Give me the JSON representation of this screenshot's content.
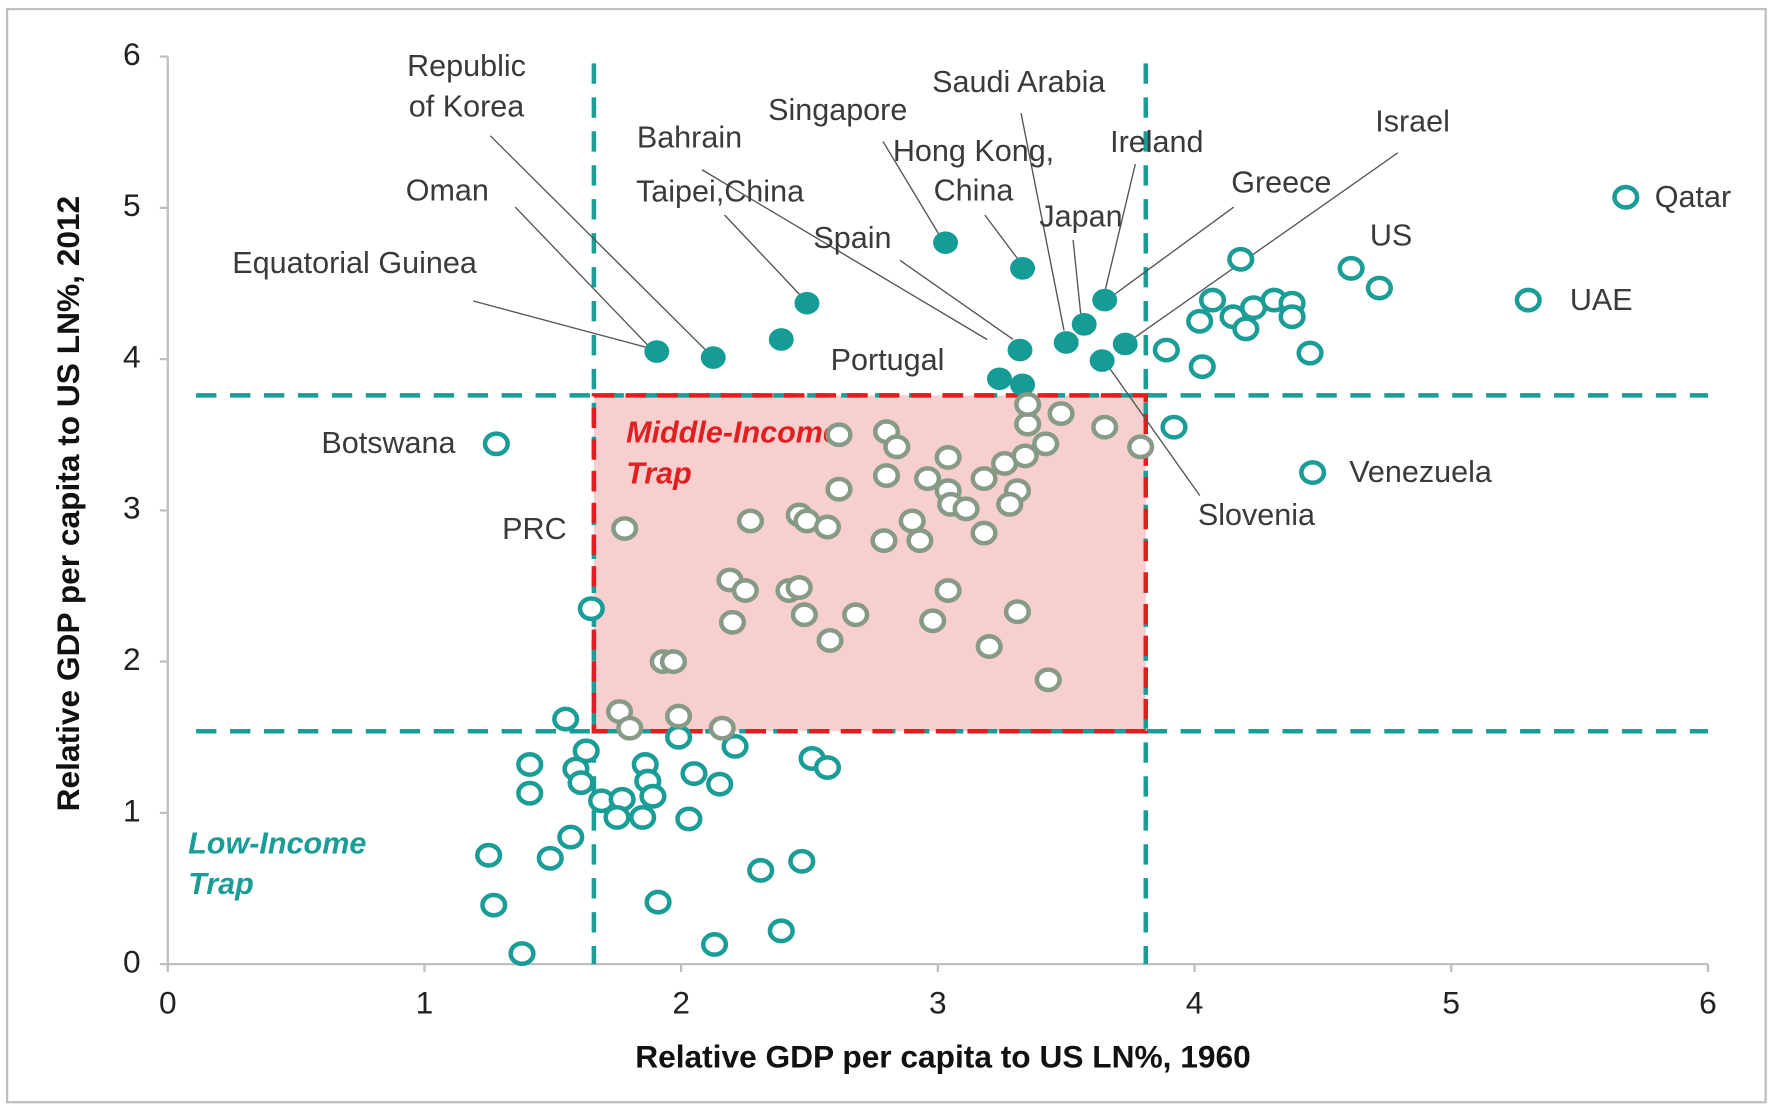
{
  "chart_data": {
    "type": "scatter",
    "x_label": "Relative GDP per capita to US LN%, 1960",
    "y_label": "Relative GDP per capita to US LN%, 2012",
    "xlim": [
      0,
      6
    ],
    "ylim": [
      0,
      6
    ],
    "xticks": [
      0,
      1,
      2,
      3,
      4,
      5,
      6
    ],
    "yticks": [
      0,
      1,
      2,
      3,
      4,
      5,
      6
    ],
    "grid": false,
    "reference_lines": {
      "color": "#1a9c97",
      "x": [
        1.66,
        3.81
      ],
      "y": [
        1.54,
        3.76
      ]
    },
    "trap_box": {
      "color": "#e02020",
      "fill": "#f7cfcf"
    },
    "series": [
      {
        "color": "#169c96",
        "filled": true,
        "x": [
          1.905,
          2.125,
          2.39,
          2.49,
          3.03,
          3.33,
          3.32,
          3.24,
          3.33,
          3.5,
          3.57,
          3.65,
          3.64,
          3.73
        ],
        "values": [
          4.05,
          4.01,
          4.13,
          4.37,
          4.77,
          4.6,
          4.06,
          3.87,
          3.83,
          4.11,
          4.23,
          4.39,
          3.99,
          4.1
        ]
      },
      {
        "color": "#1a9c97",
        "filled": false,
        "x": [
          5.68,
          5.3,
          4.46,
          4.61,
          4.72,
          4.18,
          3.89,
          4.03,
          4.02,
          4.07,
          4.15,
          4.2,
          4.23,
          4.31,
          4.38,
          4.38,
          4.45,
          3.92,
          1.28,
          1.65,
          1.55,
          1.63,
          1.41,
          1.41,
          1.59,
          1.61,
          1.69,
          1.77,
          1.75,
          1.85,
          1.86,
          1.87,
          1.89,
          1.99,
          2.05,
          2.15,
          2.03,
          2.21,
          1.57,
          1.49,
          1.25,
          1.27,
          1.38,
          1.91,
          2.13,
          2.31,
          2.39,
          2.47,
          2.51,
          2.57
        ],
        "values": [
          5.07,
          4.39,
          3.25,
          4.6,
          4.47,
          4.66,
          4.06,
          3.95,
          4.25,
          4.39,
          4.28,
          4.2,
          4.34,
          4.39,
          4.37,
          4.28,
          4.04,
          3.55,
          3.44,
          2.35,
          1.62,
          1.41,
          1.32,
          1.13,
          1.29,
          1.2,
          1.08,
          1.09,
          0.97,
          0.97,
          1.32,
          1.21,
          1.11,
          1.5,
          1.26,
          1.19,
          0.96,
          1.44,
          0.84,
          0.7,
          0.72,
          0.39,
          0.07,
          0.41,
          0.13,
          0.62,
          0.22,
          0.68,
          1.36,
          1.3
        ]
      },
      {
        "color": "#879a86",
        "filled": false,
        "x": [
          1.78,
          1.76,
          1.8,
          1.99,
          2.16,
          1.93,
          1.97,
          2.19,
          2.25,
          2.2,
          2.27,
          2.42,
          2.46,
          2.48,
          2.46,
          2.49,
          2.57,
          2.58,
          2.68,
          2.615,
          2.615,
          2.8,
          2.84,
          2.8,
          2.79,
          2.93,
          2.9,
          2.96,
          3.04,
          3.04,
          3.05,
          3.11,
          3.04,
          2.98,
          3.18,
          3.18,
          3.26,
          3.31,
          3.28,
          3.34,
          3.35,
          3.35,
          3.48,
          3.42,
          3.65,
          3.79,
          3.31,
          3.2,
          3.43
        ],
        "values": [
          2.88,
          1.67,
          1.56,
          1.64,
          1.56,
          2.0,
          2.0,
          2.54,
          2.47,
          2.26,
          2.93,
          2.47,
          2.49,
          2.31,
          2.97,
          2.93,
          2.89,
          2.14,
          2.31,
          3.14,
          3.5,
          3.52,
          3.42,
          3.23,
          2.8,
          2.8,
          2.93,
          3.21,
          3.35,
          3.13,
          3.04,
          3.01,
          2.47,
          2.27,
          2.85,
          3.21,
          3.31,
          3.13,
          3.04,
          3.36,
          3.57,
          3.7,
          3.64,
          3.44,
          3.55,
          3.42,
          2.33,
          2.1,
          1.88
        ]
      }
    ],
    "annotations": [
      [
        "Republic",
        "of Korea"
      ],
      [
        "Oman"
      ],
      [
        "Equatorial Guinea"
      ],
      [
        "Bahrain"
      ],
      [
        "Taipei,China"
      ],
      [
        "Singapore"
      ],
      [
        "Saudi Arabia"
      ],
      [
        "Hong Kong,",
        "China"
      ],
      [
        "Ireland"
      ],
      [
        "Japan"
      ],
      [
        "Spain"
      ],
      [
        "Greece"
      ],
      [
        "Israel"
      ],
      [
        "US"
      ],
      [
        "Qatar"
      ],
      [
        "UAE"
      ],
      [
        "Portugal"
      ],
      [
        "Botswana"
      ],
      [
        "Venezuela"
      ],
      [
        "PRC"
      ],
      [
        "Slovenia"
      ],
      [
        "Middle-Income",
        "Trap"
      ],
      [
        "Low-Income",
        "Trap"
      ]
    ]
  }
}
